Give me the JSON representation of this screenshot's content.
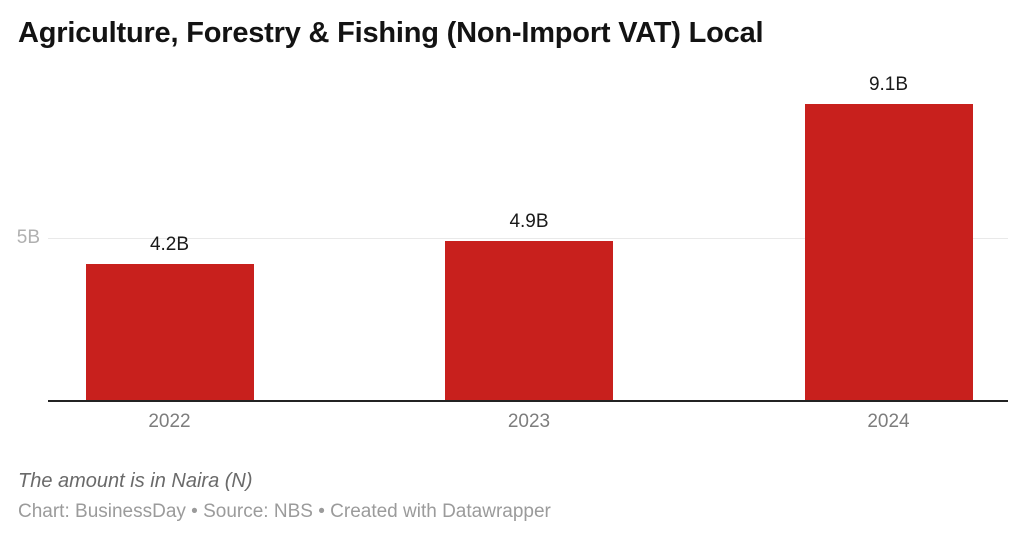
{
  "chart_data": {
    "type": "bar",
    "title": "Agriculture, Forestry & Fishing (Non-Import VAT) Local",
    "categories": [
      "2022",
      "2023",
      "2024"
    ],
    "values": [
      4.2,
      4.9,
      9.1
    ],
    "value_labels": [
      "4.2B",
      "4.9B",
      "9.1B"
    ],
    "unit": "billions of Naira (N)",
    "xlabel": "",
    "ylabel": "",
    "ylim": [
      0,
      10
    ],
    "yticks": [
      {
        "value": 5,
        "label": "5B"
      }
    ],
    "grid": "single horizontal gridline at 5B",
    "legend": "none",
    "bar_color": "#c8201d",
    "axis_color": "#232323",
    "gridline_color": "#e9e9e9",
    "footnote": "The amount is in Naira (N)",
    "attribution": "Chart: BusinessDay • Source: NBS • Created with Datawrapper"
  }
}
